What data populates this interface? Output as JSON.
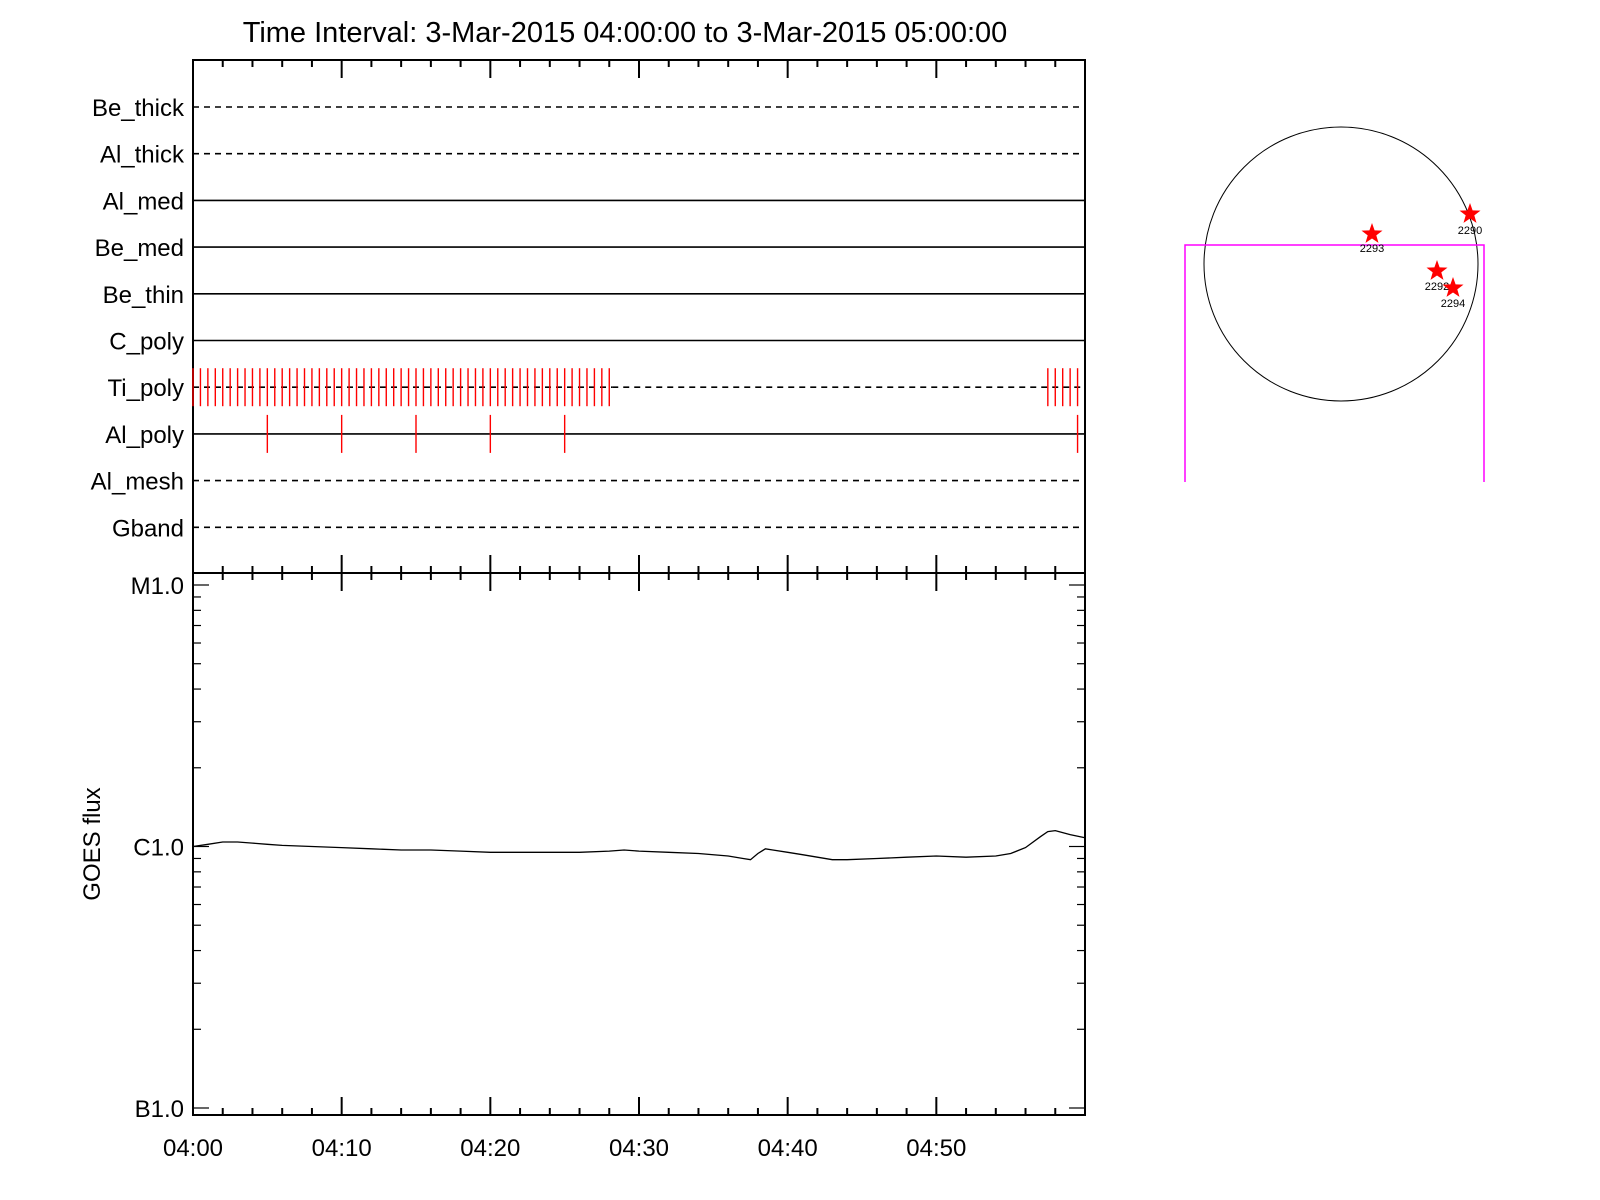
{
  "chart_data": {
    "type": "line",
    "title": "Time Interval:  3-Mar-2015 04:00:00 to  3-Mar-2015 05:00:00",
    "time_axis": {
      "start": "2015-03-03T04:00:00",
      "end": "2015-03-03T05:00:00",
      "tick_labels": [
        "04:00",
        "04:10",
        "04:20",
        "04:30",
        "04:40",
        "04:50"
      ]
    },
    "filter_panel": {
      "rows": [
        {
          "name": "Be_thick",
          "style": "dashed",
          "marks": []
        },
        {
          "name": "Al_thick",
          "style": "dashed",
          "marks": []
        },
        {
          "name": "Al_med",
          "style": "solid",
          "marks": []
        },
        {
          "name": "Be_med",
          "style": "solid",
          "marks": []
        },
        {
          "name": "Be_thin",
          "style": "solid",
          "marks": []
        },
        {
          "name": "C_poly",
          "style": "solid",
          "marks": []
        },
        {
          "name": "Ti_poly",
          "style": "dashed",
          "dash_end_minutes": 28.2,
          "marks": [
            0,
            0.5,
            1,
            1.5,
            2,
            2.5,
            3,
            3.5,
            4,
            4.5,
            5,
            5.5,
            6,
            6.5,
            7,
            7.5,
            8,
            8.5,
            9,
            9.5,
            10,
            10.5,
            11,
            11.5,
            12,
            12.5,
            13,
            13.5,
            14,
            14.5,
            15,
            15.5,
            16,
            16.5,
            17,
            17.5,
            18,
            18.5,
            19,
            19.5,
            20,
            20.5,
            21,
            21.5,
            22,
            22.5,
            23,
            23.5,
            24,
            24.5,
            25,
            25.5,
            26,
            26.5,
            27,
            27.5,
            28,
            57.5,
            58,
            58.5,
            59,
            59.5
          ]
        },
        {
          "name": "Al_poly",
          "style": "solid",
          "marks": [
            5,
            10,
            15,
            20,
            25,
            59.5
          ]
        },
        {
          "name": "Al_mesh",
          "style": "dashed",
          "marks": []
        },
        {
          "name": "Gband",
          "style": "dashed",
          "marks": []
        }
      ],
      "mark_color": "#ff0000"
    },
    "goes_panel": {
      "ylabel": "GOES flux",
      "y_scale": "log",
      "ylim": [
        1e-07,
        1e-05
      ],
      "ytick_labels": [
        {
          "value": 1e-07,
          "label": "B1.0"
        },
        {
          "value": 1e-06,
          "label": "C1.0"
        },
        {
          "value": 1e-05,
          "label": "M1.0"
        }
      ],
      "series": [
        {
          "minutes": [
            0,
            1,
            2,
            3,
            4,
            5,
            6,
            8,
            10,
            12,
            14,
            16,
            18,
            20,
            22,
            24,
            26,
            28,
            29,
            30,
            32,
            34,
            36,
            37,
            37.5,
            38,
            38.5,
            39,
            40,
            41,
            42,
            43,
            44,
            46,
            48,
            50,
            52,
            54,
            55,
            56,
            57,
            57.5,
            58,
            58.5,
            59,
            60
          ],
          "flux": [
            1e-06,
            1.02e-06,
            1.04e-06,
            1.04e-06,
            1.03e-06,
            1.02e-06,
            1.01e-06,
            1e-06,
            9.9e-07,
            9.8e-07,
            9.7e-07,
            9.7e-07,
            9.6e-07,
            9.5e-07,
            9.5e-07,
            9.5e-07,
            9.5e-07,
            9.6e-07,
            9.7e-07,
            9.6e-07,
            9.5e-07,
            9.4e-07,
            9.2e-07,
            9e-07,
            8.9e-07,
            9.4e-07,
            9.8e-07,
            9.7e-07,
            9.5e-07,
            9.3e-07,
            9.1e-07,
            8.9e-07,
            8.9e-07,
            9e-07,
            9.1e-07,
            9.2e-07,
            9.1e-07,
            9.2e-07,
            9.4e-07,
            9.9e-07,
            1.09e-06,
            1.14e-06,
            1.15e-06,
            1.13e-06,
            1.11e-06,
            1.08e-06
          ]
        }
      ]
    },
    "sun_map": {
      "disk_outline_color": "#000000",
      "fov_box_color": "#ff00ff",
      "star_color": "#ff0000",
      "active_regions": [
        {
          "label": "2290"
        },
        {
          "label": "2293"
        },
        {
          "label": "2292"
        },
        {
          "label": "2294"
        }
      ]
    }
  }
}
